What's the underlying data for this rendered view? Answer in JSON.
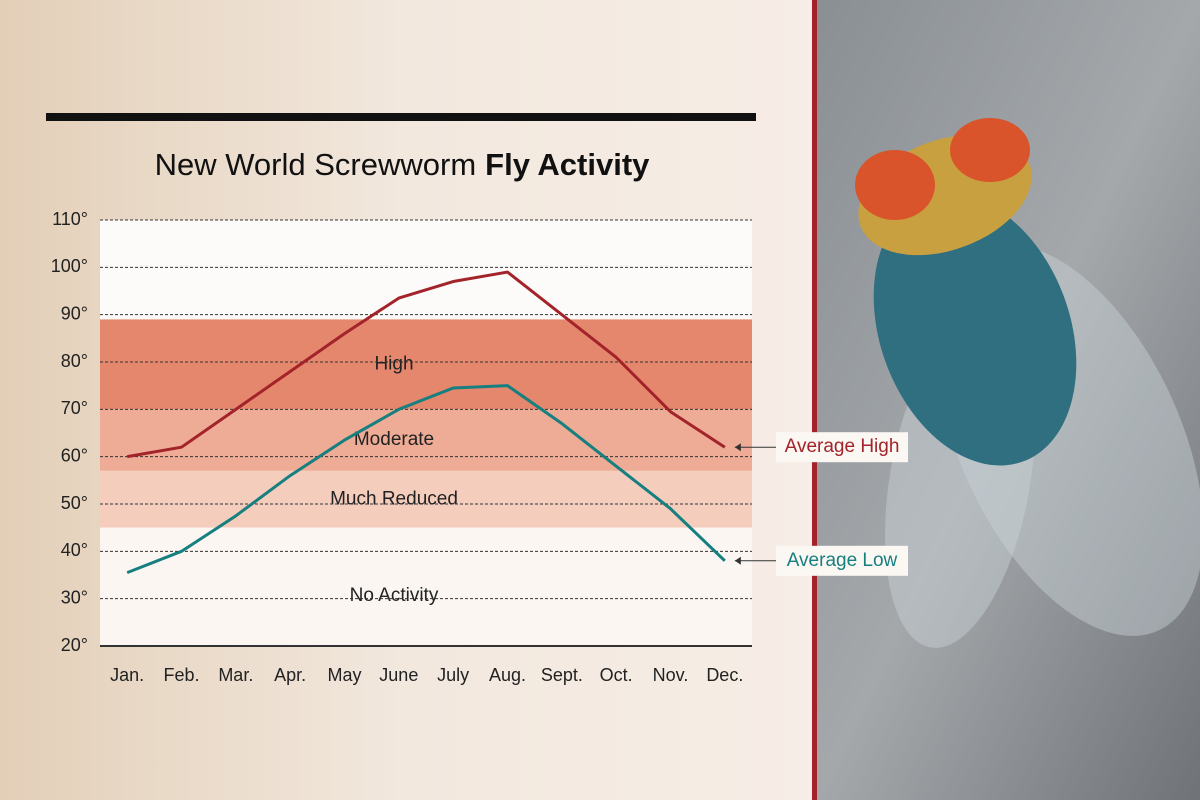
{
  "chart_data": {
    "type": "line",
    "title_parts": [
      "New World Screwworm",
      "Fly Activity"
    ],
    "categories": [
      "Jan.",
      "Feb.",
      "Mar.",
      "Apr.",
      "May",
      "June",
      "July",
      "Aug.",
      "Sept.",
      "Oct.",
      "Nov.",
      "Dec."
    ],
    "series": [
      {
        "name": "Average High",
        "color": "#a3232b",
        "values": [
          60,
          62,
          70,
          78,
          86,
          93.5,
          97,
          99,
          90,
          81,
          69.5,
          62
        ]
      },
      {
        "name": "Average Low",
        "color": "#167f7f",
        "values": [
          35.5,
          40,
          47.5,
          56,
          63.5,
          70,
          74.5,
          75,
          67,
          58,
          49,
          38
        ]
      }
    ],
    "bands": [
      {
        "name": "High",
        "from": 70,
        "to": 89,
        "color": "#e5876c"
      },
      {
        "name": "Moderate",
        "from": 57,
        "to": 70,
        "color": "#eeab95"
      },
      {
        "name": "Much Reduced",
        "from": 45,
        "to": 57,
        "color": "#f5cdbd"
      },
      {
        "name": "No Activity",
        "from": 20,
        "to": 45,
        "color": "#fbf6f2"
      }
    ],
    "ylim": [
      20,
      110
    ],
    "yticks": [
      {
        "value": 20,
        "label": "20°"
      },
      {
        "value": 30,
        "label": "30°"
      },
      {
        "value": 40,
        "label": "40°"
      },
      {
        "value": 50,
        "label": "50°"
      },
      {
        "value": 60,
        "label": "60°"
      },
      {
        "value": 70,
        "label": "70°"
      },
      {
        "value": 80,
        "label": "80°"
      },
      {
        "value": 90,
        "label": "90°"
      },
      {
        "value": 100,
        "label": "100°"
      },
      {
        "value": 110,
        "label": "110°"
      }
    ],
    "grid": true
  }
}
